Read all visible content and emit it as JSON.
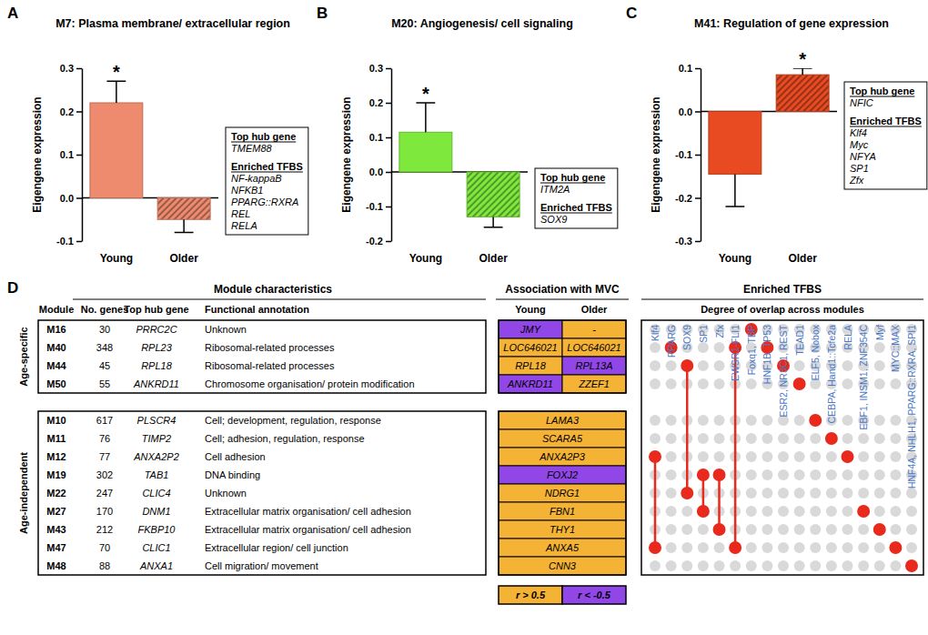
{
  "chart_data": [
    {
      "type": "bar",
      "panel": "A",
      "title": "M7: Plasma membrane/ extracellular region",
      "y_label": "Eigengene expression",
      "categories": [
        "Young",
        "Older"
      ],
      "values": [
        0.22,
        -0.05
      ],
      "errors": [
        0.05,
        0.03
      ],
      "colors": [
        "#ee8a6e",
        "#ee8a6e"
      ],
      "ylim": [
        -0.1,
        0.3
      ],
      "yticks": [
        -0.1,
        {
          "value": 0,
          "label": "0.0"
        },
        0.1,
        0.2,
        0.3
      ],
      "annotations": [
        {
          "text": "*",
          "category": "Young"
        }
      ],
      "info_box": {
        "hub_heading": "Top hub gene",
        "hub_gene": "TMEM88",
        "tfbs_heading": "Enriched TFBS",
        "tfbs": [
          "NF-kappaB",
          "NFKB1",
          "PPARG::RXRA",
          "REL",
          "RELA"
        ]
      }
    },
    {
      "type": "bar",
      "panel": "B",
      "title": "M20: Angiogenesis/ cell signaling",
      "y_label": "Eigengene expression",
      "categories": [
        "Young",
        "Older"
      ],
      "values": [
        0.115,
        -0.13
      ],
      "errors": [
        0.085,
        0.03
      ],
      "colors": [
        "#7ee83c",
        "#7ee83c"
      ],
      "ylim": [
        -0.2,
        0.3
      ],
      "yticks": [
        -0.2,
        -0.1,
        {
          "value": 0,
          "label": "0.0"
        },
        0.1,
        0.2,
        0.3
      ],
      "annotations": [
        {
          "text": "*",
          "category": "Young"
        }
      ],
      "info_box": {
        "hub_heading": "Top hub gene",
        "hub_gene": "ITM2A",
        "tfbs_heading": "Enriched TFBS",
        "tfbs": [
          "SOX9"
        ]
      }
    },
    {
      "type": "bar",
      "panel": "C",
      "title": "M41: Regulation of gene expression",
      "y_label": "Eigengene expression",
      "categories": [
        "Young",
        "Older"
      ],
      "values": [
        -0.145,
        0.085
      ],
      "errors": [
        0.075,
        0.015
      ],
      "colors": [
        "#e84a22",
        "#e84a22"
      ],
      "ylim": [
        -0.3,
        0.1
      ],
      "yticks": [
        -0.3,
        -0.2,
        -0.1,
        {
          "value": 0,
          "label": "0.0"
        },
        0.1
      ],
      "annotations": [
        {
          "text": "*",
          "category": "Older"
        }
      ],
      "info_box": {
        "hub_heading": "Top hub gene",
        "hub_gene": "NFIC",
        "tfbs_heading": "Enriched TFBS",
        "tfbs": [
          "Klf4",
          "Myc",
          "NFYA",
          "SP1",
          "Zfx"
        ]
      }
    }
  ],
  "panel_d": {
    "panel": "D",
    "headers": {
      "characteristics": "Module characteristics",
      "module": "Module",
      "n_genes": "No. genes",
      "hub_gene": "Top hub gene",
      "annotation": "Functional annotation",
      "association": "Association with MVC",
      "young": "Young",
      "older": "Older",
      "tfbs": "Enriched TFBS",
      "overlap": "Degree of overlap across modules"
    },
    "tfbs_columns": [
      "Klf4",
      "PPARG",
      "SOX9",
      "SP1",
      "Zfx",
      "EWSR1-FLI1",
      "Foxq1, TBP",
      "HNF1B, TP53",
      "ESR2, NR3C1, REST",
      "TEAD1",
      "ELF5, Nobox",
      "CEBPA, Hand1::Tcfe2a",
      "RELA",
      "EBF1, INSM1, ZNF354C",
      "Myf",
      "MYC::MAX",
      "HNF4A, NHLH1, PPARG::RXRA, SPI1"
    ],
    "association_legend": [
      {
        "label": "r > 0.5",
        "color": "#f5b335"
      },
      {
        "label": "r < -0.5",
        "color": "#9146e8"
      }
    ],
    "sections": [
      {
        "label": "Age-specific",
        "rows": [
          {
            "module": "M16",
            "n_genes": 30,
            "hub_gene": "PRRC2C",
            "annotation": "Unknown",
            "young": {
              "gene": "JMY",
              "corr": "r < -0.5"
            },
            "older": {
              "gene": "-",
              "corr": "r > 0.5"
            },
            "tfbs": [
              "Foxq1, TBP"
            ]
          },
          {
            "module": "M40",
            "n_genes": 348,
            "hub_gene": "RPL23",
            "annotation": "Ribosomal-related processes",
            "young": {
              "gene": "LOC646021",
              "corr": "r > 0.5"
            },
            "older": {
              "gene": "LOC646021",
              "corr": "r > 0.5"
            },
            "tfbs": [
              "PPARG",
              "EWSR1-FLI1",
              "HNF1B, TP53"
            ]
          },
          {
            "module": "M44",
            "n_genes": 45,
            "hub_gene": "RPL18",
            "annotation": "Ribosomal-related processes",
            "young": {
              "gene": "RPL18",
              "corr": "r > 0.5"
            },
            "older": {
              "gene": "RPL13A",
              "corr": "r < -0.5"
            },
            "tfbs": [
              "SOX9",
              "ESR2, NR3C1, REST"
            ]
          },
          {
            "module": "M50",
            "n_genes": 55,
            "hub_gene": "ANKRD11",
            "annotation": "Chromosome organisation/ protein modification",
            "young": {
              "gene": "ANKRD11",
              "corr": "r < -0.5"
            },
            "older": {
              "gene": "ZZEF1",
              "corr": "r > 0.5"
            },
            "tfbs": [
              "TEAD1"
            ]
          }
        ]
      },
      {
        "label": "Age-independent",
        "rows": [
          {
            "module": "M10",
            "n_genes": 617,
            "hub_gene": "PLSCR4",
            "annotation": "Cell; development, regulation, response",
            "association": {
              "gene": "LAMA3",
              "corr": "r > 0.5"
            },
            "tfbs": [
              "ELF5, Nobox"
            ]
          },
          {
            "module": "M11",
            "n_genes": 76,
            "hub_gene": "TIMP2",
            "annotation": "Cell; adhesion, regulation, response",
            "association": {
              "gene": "SCARA5",
              "corr": "r > 0.5"
            },
            "tfbs": [
              "CEBPA, Hand1::Tcfe2a"
            ]
          },
          {
            "module": "M12",
            "n_genes": 77,
            "hub_gene": "ANXA2P2",
            "annotation": "Cell adhesion",
            "association": {
              "gene": "ANXA2P3",
              "corr": "r > 0.5"
            },
            "tfbs": [
              "Klf4",
              "RELA"
            ]
          },
          {
            "module": "M19",
            "n_genes": 302,
            "hub_gene": "TAB1",
            "annotation": "DNA binding",
            "association": {
              "gene": "FOXJ2",
              "corr": "r < -0.5"
            },
            "tfbs": [
              "SP1",
              "Zfx"
            ]
          },
          {
            "module": "M22",
            "n_genes": 247,
            "hub_gene": "CLIC4",
            "annotation": "Unknown",
            "association": {
              "gene": "NDRG1",
              "corr": "r > 0.5"
            },
            "tfbs": [
              "SOX9"
            ]
          },
          {
            "module": "M27",
            "n_genes": 170,
            "hub_gene": "DNM1",
            "annotation": "Extracellular matrix organisation/ cell adhesion",
            "association": {
              "gene": "FBN1",
              "corr": "r > 0.5"
            },
            "tfbs": [
              "SP1",
              "EBF1, INSM1, ZNF354C"
            ]
          },
          {
            "module": "M43",
            "n_genes": 212,
            "hub_gene": "FKBP10",
            "annotation": "Extracellular matrix organisation/ cell adhesion",
            "association": {
              "gene": "THY1",
              "corr": "r > 0.5"
            },
            "tfbs": [
              "Zfx",
              "Myf"
            ]
          },
          {
            "module": "M47",
            "n_genes": 70,
            "hub_gene": "CLIC1",
            "annotation": "Extracellular region/ cell junction",
            "association": {
              "gene": "ANXA5",
              "corr": "r > 0.5"
            },
            "tfbs": [
              "Klf4",
              "EWSR1-FLI1",
              "MYC::MAX"
            ]
          },
          {
            "module": "M48",
            "n_genes": 88,
            "hub_gene": "ANXA1",
            "annotation": "Cell migration/ movement",
            "association": {
              "gene": "CNN3",
              "corr": "r > 0.5"
            },
            "tfbs": [
              "HNF4A, NHLH1, PPARG::RXRA, SPI1"
            ]
          }
        ]
      }
    ]
  }
}
